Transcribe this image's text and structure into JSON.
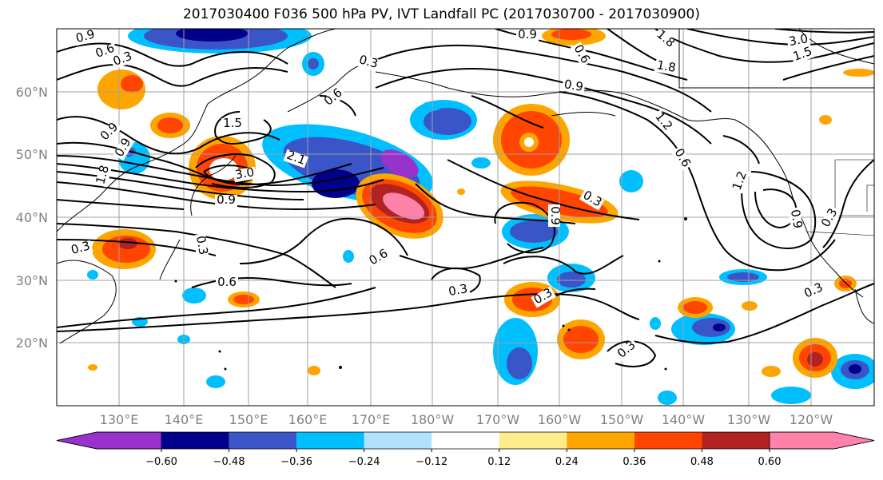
{
  "title": "2017030400 F036 500 hPa PV, IVT Landfall PC (2017030700 - 2017030900)",
  "lat_labels": [
    "60°N",
    "50°N",
    "40°N",
    "30°N",
    "20°N"
  ],
  "lon_labels": [
    "130°E",
    "140°E",
    "150°E",
    "160°E",
    "170°E",
    "180°W",
    "170°W",
    "160°W",
    "150°W",
    "140°W",
    "130°W",
    "120°W"
  ],
  "colorbar": {
    "colors": [
      "#9932CC",
      "#00008B",
      "#3A55C8",
      "#00BFFF",
      "#B0E2FF",
      "#FFFFFF",
      "#FFEC8B",
      "#FFA500",
      "#FF4500",
      "#B22222",
      "#FF82AB"
    ],
    "tick_labels": [
      "−0.60",
      "−0.48",
      "−0.36",
      "−0.24",
      "−0.12",
      "0.12",
      "0.24",
      "0.36",
      "0.48",
      "0.60"
    ]
  },
  "contour_labels": [
    "0.9",
    "0.6",
    "0.3",
    "0.3",
    "0.6",
    "0.9",
    "0.6",
    "1.5",
    "1.8",
    "2.1",
    "3.0",
    "0.9",
    "0.3",
    "0.6",
    "0.3",
    "0.6",
    "0.3",
    "0.9",
    "0.3",
    "0.3",
    "0.3",
    "1.2",
    "0.6",
    "1.2",
    "1.5",
    "3.0",
    "1.8",
    "0.9",
    "1.2",
    "0.3",
    "0.3",
    "0.9",
    "1.8",
    "0.6"
  ]
}
